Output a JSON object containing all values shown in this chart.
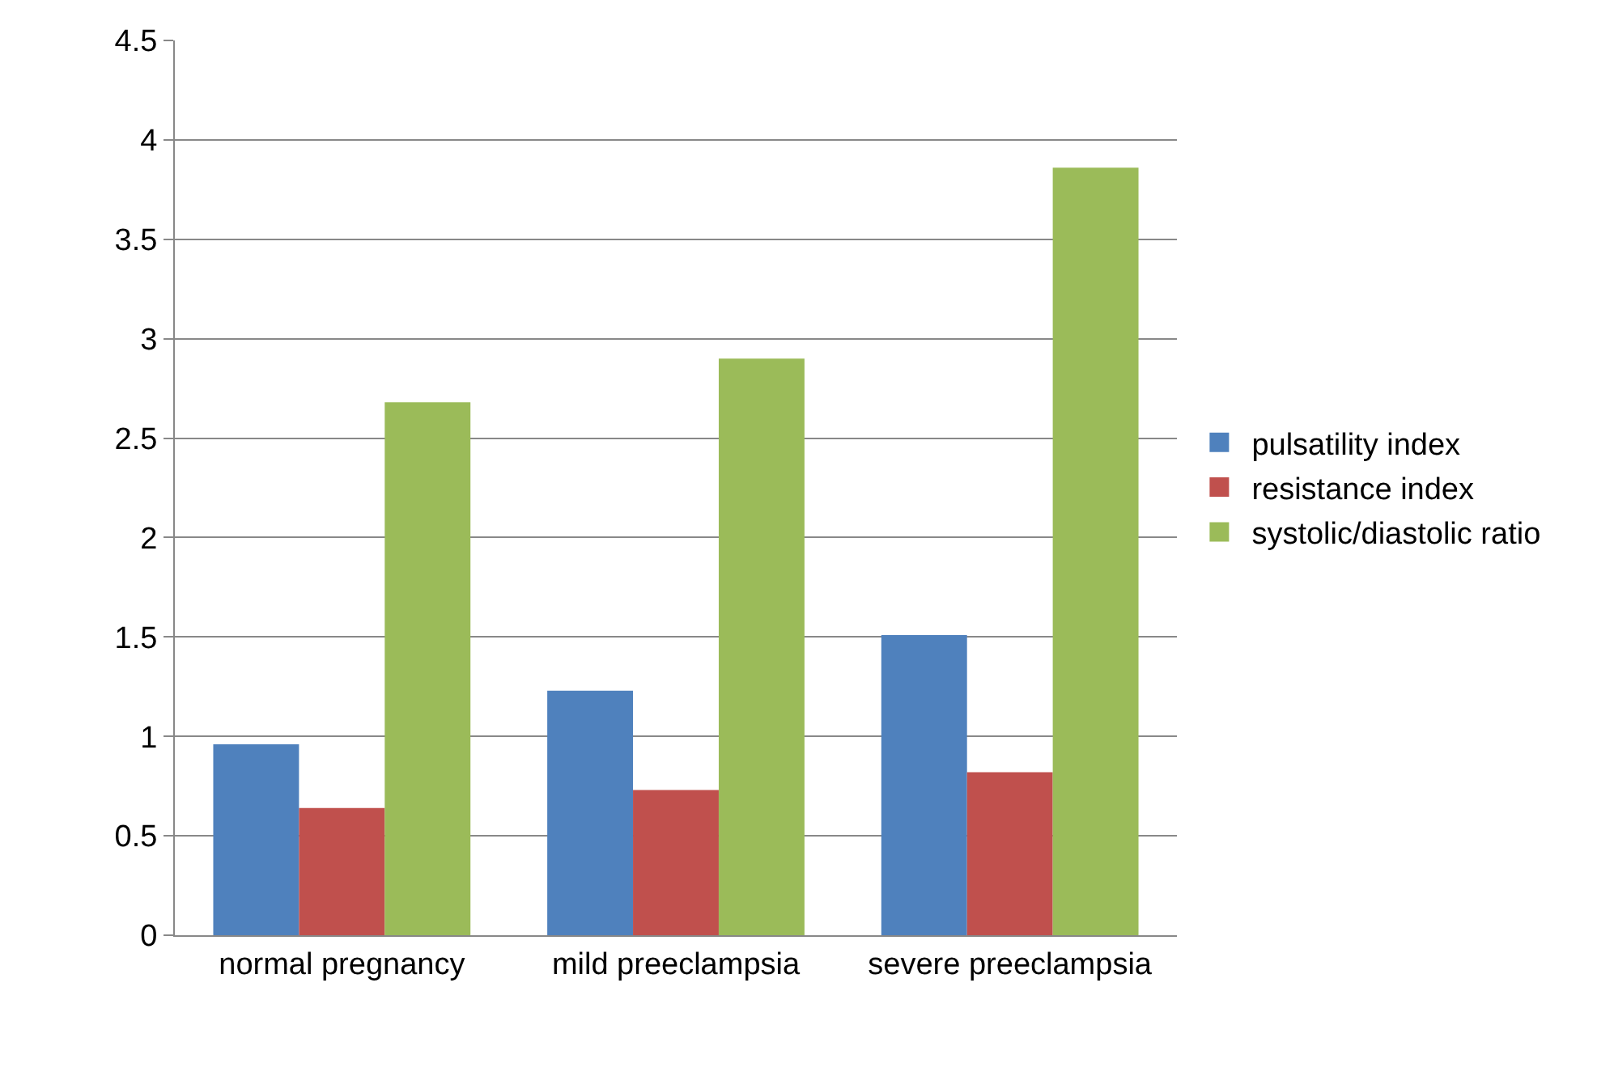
{
  "chart_data": {
    "type": "bar",
    "categories": [
      "normal pregnancy",
      "mild preeclampsia",
      "severe preeclampsia"
    ],
    "series": [
      {
        "name": "pulsatility index",
        "color": "#4f81bd",
        "values": [
          0.96,
          1.23,
          1.51
        ]
      },
      {
        "name": "resistance index",
        "color": "#c0504d",
        "values": [
          0.64,
          0.73,
          0.82
        ]
      },
      {
        "name": "systolic/diastolic ratio",
        "color": "#9bbb59",
        "values": [
          2.68,
          2.9,
          3.86
        ]
      }
    ],
    "ylim": [
      0,
      4.5
    ],
    "yticks": [
      0,
      0.5,
      1,
      1.5,
      2,
      2.5,
      3,
      3.5,
      4,
      4.5
    ],
    "grid": "y",
    "legend": "right"
  }
}
